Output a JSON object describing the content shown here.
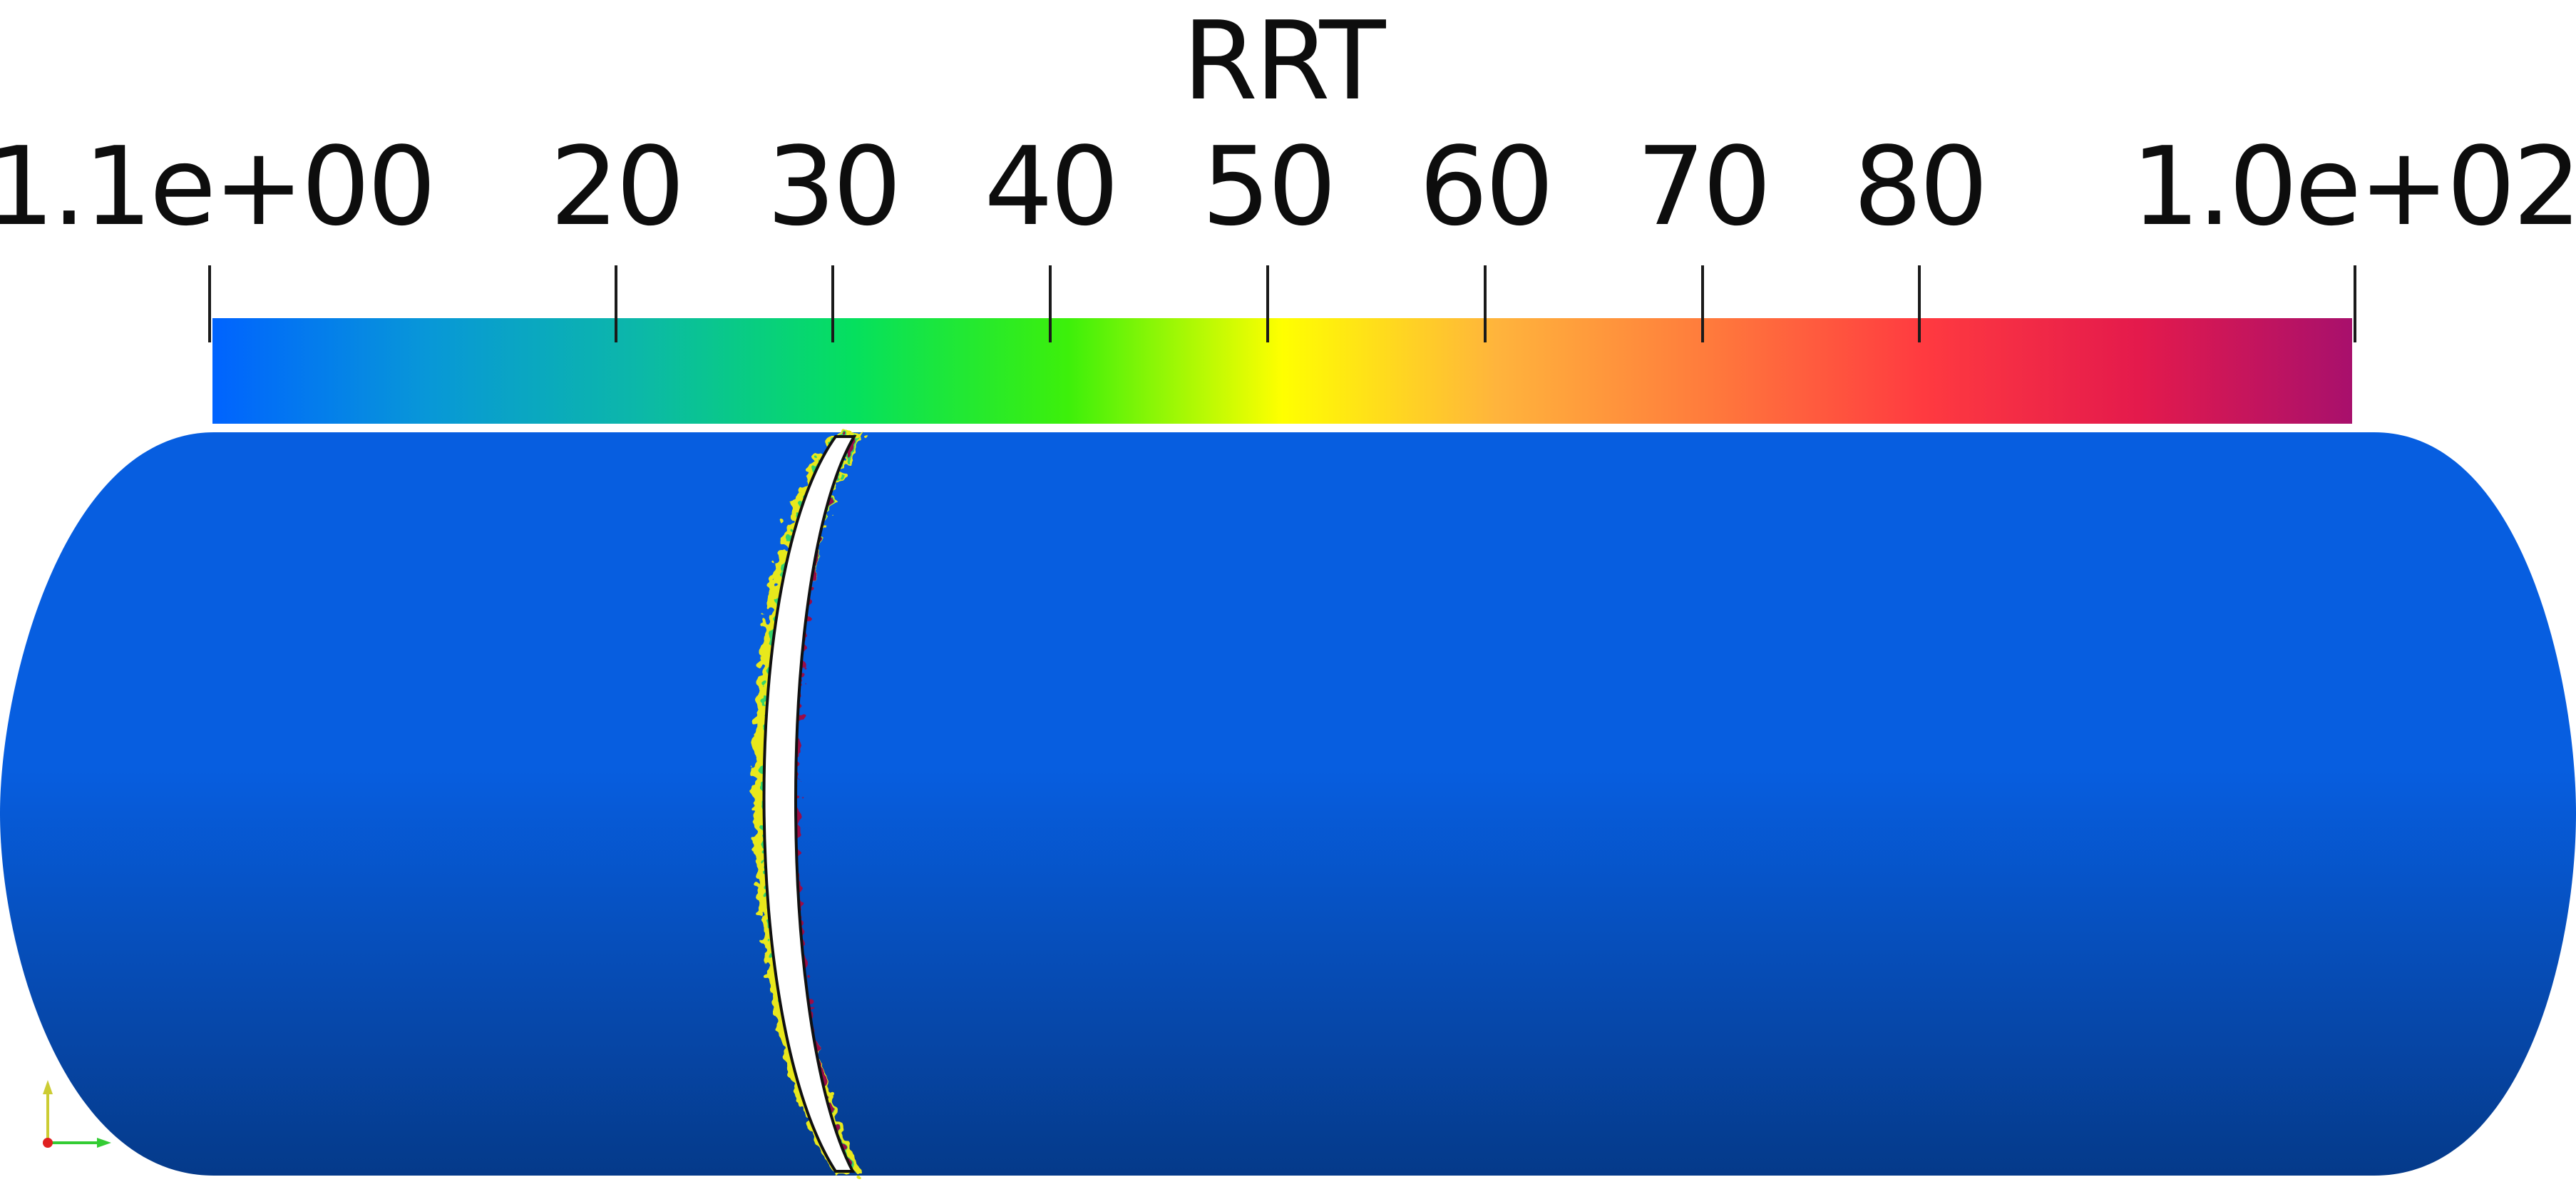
{
  "scalar_bar": {
    "title": "RRT",
    "range": [
      1.1,
      100
    ],
    "tick_labels": [
      "1.1e+00",
      "20",
      "30",
      "40",
      "50",
      "60",
      "70",
      "80",
      "1.0e+02"
    ],
    "tick_values": [
      1.1,
      20,
      30,
      40,
      50,
      60,
      70,
      80,
      100
    ],
    "colormap": [
      "#0063ff",
      "#0897d8",
      "#0cb8a8",
      "#05e05e",
      "#3df00a",
      "#ffff00",
      "#ffb43c",
      "#ff7a3c",
      "#ff3a40",
      "#e41a4c",
      "#a8106c"
    ]
  },
  "scene": {
    "vessel_color_top": "#075ee0",
    "vessel_color_bottom": "#053a8a",
    "lesion_high_color": "#9a0a4a",
    "lesion_ring_color": "#ffffff"
  },
  "axes_widget": {
    "x_color": "#33cc33",
    "y_color": "#cccc33",
    "origin_color": "#e02020"
  }
}
